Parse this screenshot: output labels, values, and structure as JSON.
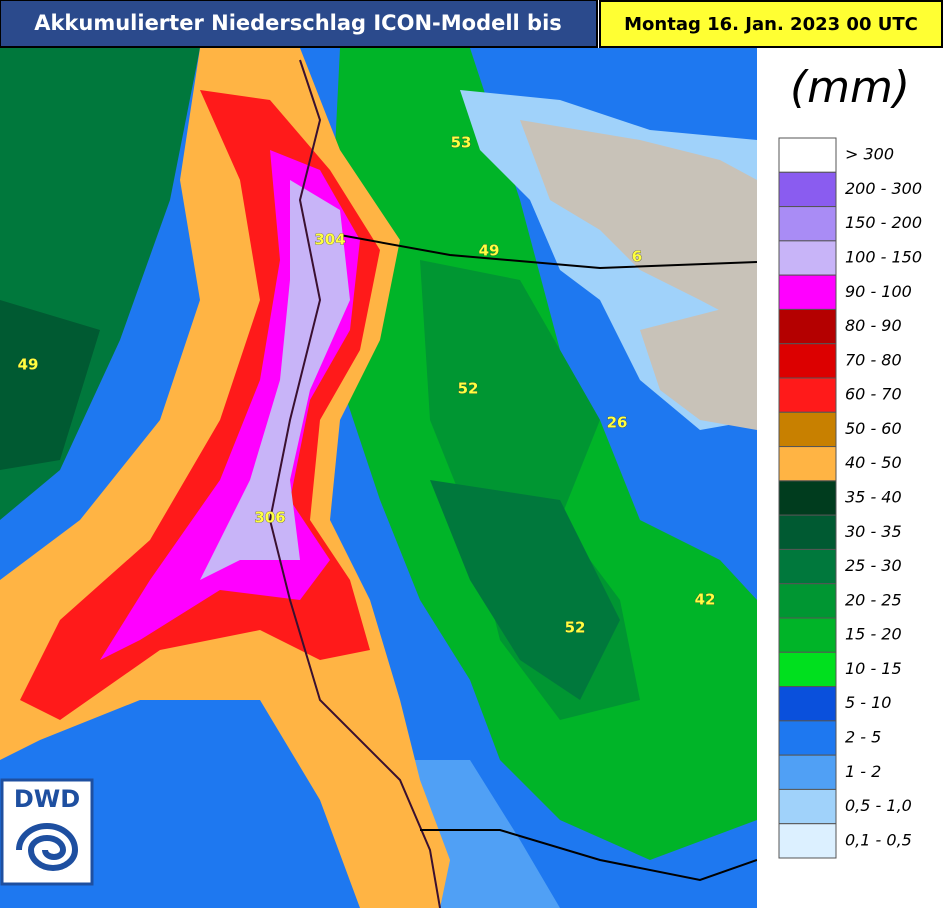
{
  "header": {
    "title": "Akkumulierter Niederschlag ICON-Modell bis",
    "date": "Montag 16. Jan. 2023 00 UTC"
  },
  "legend": {
    "unit": "(mm)",
    "entries": [
      {
        "label": "> 300",
        "color": "#ffffff"
      },
      {
        "label": "200 - 300",
        "color": "#8a5cf0"
      },
      {
        "label": "150 - 200",
        "color": "#a98cf5"
      },
      {
        "label": "100 - 150",
        "color": "#c8b4f8"
      },
      {
        "label": "90 - 100",
        "color": "#ff00ff"
      },
      {
        "label": "80 - 90",
        "color": "#b40000"
      },
      {
        "label": "70 - 80",
        "color": "#dc0000"
      },
      {
        "label": "60 - 70",
        "color": "#ff1a1a"
      },
      {
        "label": "50 - 60",
        "color": "#c88000"
      },
      {
        "label": "40 - 50",
        "color": "#ffb444"
      },
      {
        "label": "35 - 40",
        "color": "#003c1e"
      },
      {
        "label": "30 - 35",
        "color": "#005a32"
      },
      {
        "label": "25 - 30",
        "color": "#00783c"
      },
      {
        "label": "20 - 25",
        "color": "#009632"
      },
      {
        "label": "15 - 20",
        "color": "#00b428"
      },
      {
        "label": "10 - 15",
        "color": "#00e01e"
      },
      {
        "label": "5 - 10",
        "color": "#0a50dc"
      },
      {
        "label": "2 - 5",
        "color": "#1e78f0"
      },
      {
        "label": "1 - 2",
        "color": "#50a0f5"
      },
      {
        "label": "0,5 - 1,0",
        "color": "#a0d2fa"
      },
      {
        "label": "0,1 - 0,5",
        "color": "#dcf0ff"
      }
    ]
  },
  "map": {
    "labels": [
      "53",
      "304",
      "49",
      "6",
      "49",
      "52",
      "26",
      "306",
      "42",
      "52"
    ]
  },
  "logo": {
    "text": "DWD"
  }
}
